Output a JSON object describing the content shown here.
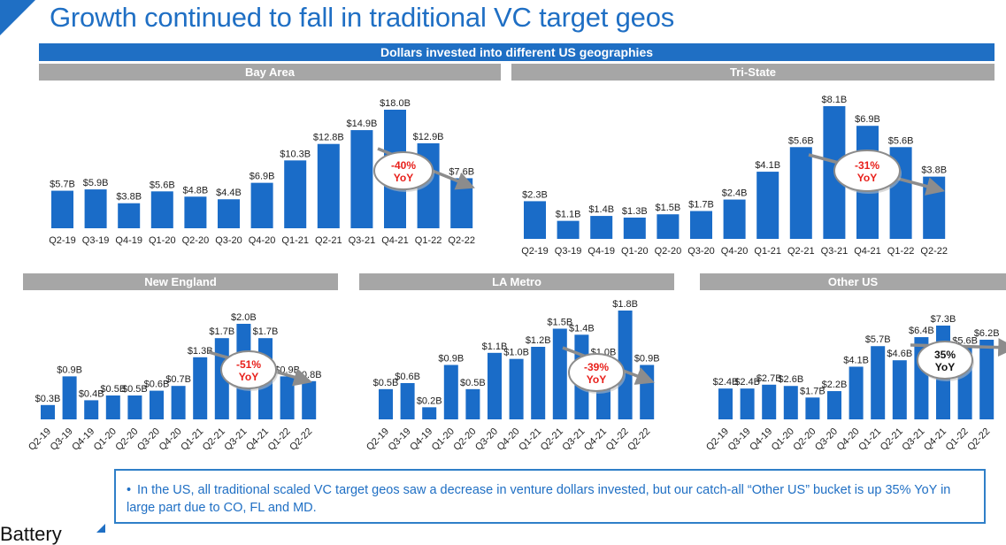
{
  "page": {
    "title": "Growth continued to fall in traditional VC target geos",
    "band": "Dollars invested into different US geographies",
    "note": "In the US, all traditional scaled VC target geos saw a decrease in venture dollars invested, but our catch-all “Other US” bucket is up 35% YoY in large part due to CO, FL and MD.",
    "brand": "Battery"
  },
  "colors": {
    "accent": "#1f6fc4",
    "bar": "#1a6cc8",
    "header": "#a6a6a6",
    "negative": "#e8201b",
    "neutral": "#111111"
  },
  "chart_data": [
    {
      "type": "bar",
      "title": "Bay Area",
      "categories": [
        "Q2-19",
        "Q3-19",
        "Q4-19",
        "Q1-20",
        "Q2-20",
        "Q3-20",
        "Q4-20",
        "Q1-21",
        "Q2-21",
        "Q3-21",
        "Q4-21",
        "Q1-22",
        "Q2-22"
      ],
      "values": [
        5.7,
        5.9,
        3.8,
        5.6,
        4.8,
        4.4,
        6.9,
        10.3,
        12.8,
        14.9,
        18.0,
        12.9,
        7.6
      ],
      "labels": [
        "$5.7B",
        "$5.9B",
        "$3.8B",
        "$5.6B",
        "$4.8B",
        "$4.4B",
        "$6.9B",
        "$10.3B",
        "$12.8B",
        "$14.9B",
        "$18.0B",
        "$12.9B",
        "$7.6B"
      ],
      "ylim": [
        0,
        18.0
      ],
      "yoy": [
        "-40%",
        "YoY"
      ],
      "yoy_tone": "negative",
      "unit": "$B"
    },
    {
      "type": "bar",
      "title": "Tri-State",
      "categories": [
        "Q2-19",
        "Q3-19",
        "Q4-19",
        "Q1-20",
        "Q2-20",
        "Q3-20",
        "Q4-20",
        "Q1-21",
        "Q2-21",
        "Q3-21",
        "Q4-21",
        "Q1-22",
        "Q2-22"
      ],
      "values": [
        2.3,
        1.1,
        1.4,
        1.3,
        1.5,
        1.7,
        2.4,
        4.1,
        5.6,
        8.1,
        6.9,
        5.6,
        3.8
      ],
      "labels": [
        "$2.3B",
        "$1.1B",
        "$1.4B",
        "$1.3B",
        "$1.5B",
        "$1.7B",
        "$2.4B",
        "$4.1B",
        "$5.6B",
        "$8.1B",
        "$6.9B",
        "$5.6B",
        "$3.8B"
      ],
      "ylim": [
        0,
        8.1
      ],
      "yoy": [
        "-31%",
        "YoY"
      ],
      "yoy_tone": "negative",
      "unit": "$B"
    },
    {
      "type": "bar",
      "title": "New England",
      "categories": [
        "Q2-19",
        "Q3-19",
        "Q4-19",
        "Q1-20",
        "Q2-20",
        "Q3-20",
        "Q4-20",
        "Q1-21",
        "Q2-21",
        "Q3-21",
        "Q4-21",
        "Q1-22",
        "Q2-22"
      ],
      "values": [
        0.3,
        0.9,
        0.4,
        0.5,
        0.5,
        0.6,
        0.7,
        1.3,
        1.7,
        2.0,
        1.7,
        0.9,
        0.8
      ],
      "labels": [
        "$0.3B",
        "$0.9B",
        "$0.4B",
        "$0.5B",
        "$0.5B",
        "$0.6B",
        "$0.7B",
        "$1.3B",
        "$1.7B",
        "$2.0B",
        "$1.7B",
        "$0.9B",
        "$0.8B"
      ],
      "ylim": [
        0,
        2.0
      ],
      "yoy": [
        "-51%",
        "YoY"
      ],
      "yoy_tone": "negative",
      "unit": "$B"
    },
    {
      "type": "bar",
      "title": "LA Metro",
      "categories": [
        "Q2-19",
        "Q3-19",
        "Q4-19",
        "Q1-20",
        "Q2-20",
        "Q3-20",
        "Q4-20",
        "Q1-21",
        "Q2-21",
        "Q3-21",
        "Q4-21",
        "Q1-22",
        "Q2-22"
      ],
      "values": [
        0.5,
        0.6,
        0.2,
        0.9,
        0.5,
        1.1,
        1.0,
        1.2,
        1.5,
        1.4,
        1.0,
        1.8,
        0.9
      ],
      "labels": [
        "$0.5B",
        "$0.6B",
        "$0.2B",
        "$0.9B",
        "$0.5B",
        "$1.1B",
        "$1.0B",
        "$1.2B",
        "$1.5B",
        "$1.4B",
        "$1.0B",
        "$1.8B",
        "$0.9B"
      ],
      "ylim": [
        0,
        1.8
      ],
      "yoy": [
        "-39%",
        "YoY"
      ],
      "yoy_tone": "negative",
      "unit": "$B"
    },
    {
      "type": "bar",
      "title": "Other US",
      "categories": [
        "Q2-19",
        "Q3-19",
        "Q4-19",
        "Q1-20",
        "Q2-20",
        "Q3-20",
        "Q4-20",
        "Q1-21",
        "Q2-21",
        "Q3-21",
        "Q4-21",
        "Q1-22",
        "Q2-22"
      ],
      "values": [
        2.4,
        2.4,
        2.7,
        2.6,
        1.7,
        2.2,
        4.1,
        5.7,
        4.6,
        6.4,
        7.3,
        5.6,
        6.2
      ],
      "labels": [
        "$2.4B",
        "$2.4B",
        "$2.7B",
        "$2.6B",
        "$1.7B",
        "$2.2B",
        "$4.1B",
        "$5.7B",
        "$4.6B",
        "$6.4B",
        "$7.3B",
        "$5.6B",
        "$6.2B"
      ],
      "ylim": [
        0,
        7.3
      ],
      "yoy": [
        "35%",
        "YoY"
      ],
      "yoy_tone": "neutral",
      "unit": "$B"
    }
  ]
}
